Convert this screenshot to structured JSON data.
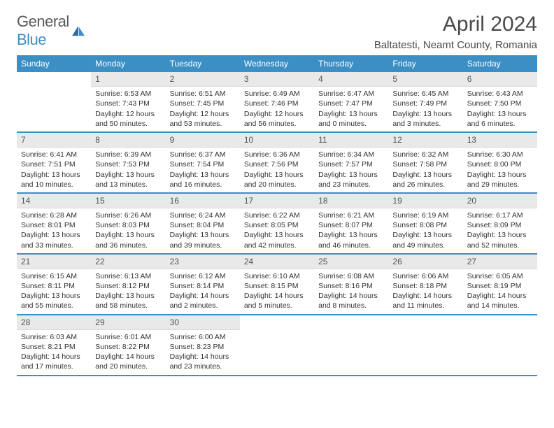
{
  "brand": {
    "name_gray": "General",
    "name_blue": "Blue"
  },
  "title": "April 2024",
  "location": "Baltatesti, Neamt County, Romania",
  "colors": {
    "header_bg": "#3b8fc4",
    "header_text": "#ffffff",
    "daynum_bg": "#e9e9e9",
    "row_sep": "#3b8fc4",
    "logo_gray": "#5a5a5a",
    "logo_blue": "#3b8fc4"
  },
  "weekdays": [
    "Sunday",
    "Monday",
    "Tuesday",
    "Wednesday",
    "Thursday",
    "Friday",
    "Saturday"
  ],
  "weeks": [
    [
      null,
      {
        "n": "1",
        "sr": "6:53 AM",
        "ss": "7:43 PM",
        "dl": "12 hours and 50 minutes."
      },
      {
        "n": "2",
        "sr": "6:51 AM",
        "ss": "7:45 PM",
        "dl": "12 hours and 53 minutes."
      },
      {
        "n": "3",
        "sr": "6:49 AM",
        "ss": "7:46 PM",
        "dl": "12 hours and 56 minutes."
      },
      {
        "n": "4",
        "sr": "6:47 AM",
        "ss": "7:47 PM",
        "dl": "13 hours and 0 minutes."
      },
      {
        "n": "5",
        "sr": "6:45 AM",
        "ss": "7:49 PM",
        "dl": "13 hours and 3 minutes."
      },
      {
        "n": "6",
        "sr": "6:43 AM",
        "ss": "7:50 PM",
        "dl": "13 hours and 6 minutes."
      }
    ],
    [
      {
        "n": "7",
        "sr": "6:41 AM",
        "ss": "7:51 PM",
        "dl": "13 hours and 10 minutes."
      },
      {
        "n": "8",
        "sr": "6:39 AM",
        "ss": "7:53 PM",
        "dl": "13 hours and 13 minutes."
      },
      {
        "n": "9",
        "sr": "6:37 AM",
        "ss": "7:54 PM",
        "dl": "13 hours and 16 minutes."
      },
      {
        "n": "10",
        "sr": "6:36 AM",
        "ss": "7:56 PM",
        "dl": "13 hours and 20 minutes."
      },
      {
        "n": "11",
        "sr": "6:34 AM",
        "ss": "7:57 PM",
        "dl": "13 hours and 23 minutes."
      },
      {
        "n": "12",
        "sr": "6:32 AM",
        "ss": "7:58 PM",
        "dl": "13 hours and 26 minutes."
      },
      {
        "n": "13",
        "sr": "6:30 AM",
        "ss": "8:00 PM",
        "dl": "13 hours and 29 minutes."
      }
    ],
    [
      {
        "n": "14",
        "sr": "6:28 AM",
        "ss": "8:01 PM",
        "dl": "13 hours and 33 minutes."
      },
      {
        "n": "15",
        "sr": "6:26 AM",
        "ss": "8:03 PM",
        "dl": "13 hours and 36 minutes."
      },
      {
        "n": "16",
        "sr": "6:24 AM",
        "ss": "8:04 PM",
        "dl": "13 hours and 39 minutes."
      },
      {
        "n": "17",
        "sr": "6:22 AM",
        "ss": "8:05 PM",
        "dl": "13 hours and 42 minutes."
      },
      {
        "n": "18",
        "sr": "6:21 AM",
        "ss": "8:07 PM",
        "dl": "13 hours and 46 minutes."
      },
      {
        "n": "19",
        "sr": "6:19 AM",
        "ss": "8:08 PM",
        "dl": "13 hours and 49 minutes."
      },
      {
        "n": "20",
        "sr": "6:17 AM",
        "ss": "8:09 PM",
        "dl": "13 hours and 52 minutes."
      }
    ],
    [
      {
        "n": "21",
        "sr": "6:15 AM",
        "ss": "8:11 PM",
        "dl": "13 hours and 55 minutes."
      },
      {
        "n": "22",
        "sr": "6:13 AM",
        "ss": "8:12 PM",
        "dl": "13 hours and 58 minutes."
      },
      {
        "n": "23",
        "sr": "6:12 AM",
        "ss": "8:14 PM",
        "dl": "14 hours and 2 minutes."
      },
      {
        "n": "24",
        "sr": "6:10 AM",
        "ss": "8:15 PM",
        "dl": "14 hours and 5 minutes."
      },
      {
        "n": "25",
        "sr": "6:08 AM",
        "ss": "8:16 PM",
        "dl": "14 hours and 8 minutes."
      },
      {
        "n": "26",
        "sr": "6:06 AM",
        "ss": "8:18 PM",
        "dl": "14 hours and 11 minutes."
      },
      {
        "n": "27",
        "sr": "6:05 AM",
        "ss": "8:19 PM",
        "dl": "14 hours and 14 minutes."
      }
    ],
    [
      {
        "n": "28",
        "sr": "6:03 AM",
        "ss": "8:21 PM",
        "dl": "14 hours and 17 minutes."
      },
      {
        "n": "29",
        "sr": "6:01 AM",
        "ss": "8:22 PM",
        "dl": "14 hours and 20 minutes."
      },
      {
        "n": "30",
        "sr": "6:00 AM",
        "ss": "8:23 PM",
        "dl": "14 hours and 23 minutes."
      },
      null,
      null,
      null,
      null
    ]
  ],
  "labels": {
    "sunrise": "Sunrise:",
    "sunset": "Sunset:",
    "daylight": "Daylight:"
  }
}
